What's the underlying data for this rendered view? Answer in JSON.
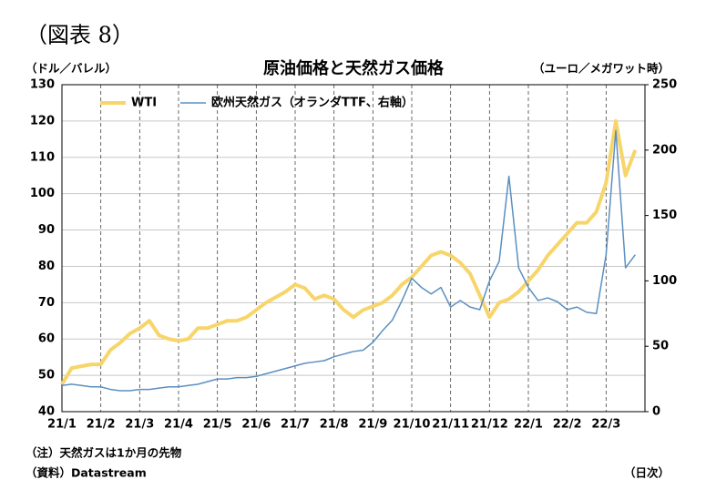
{
  "header": "（図表 8）",
  "chart_data": {
    "type": "line",
    "title": "原油価格と天然ガス価格",
    "y_label": "（ドル／バレル）",
    "y2_label": "（ユーロ／メガワット時）",
    "categories": [
      "21/1",
      null,
      null,
      null,
      "21/2",
      null,
      null,
      null,
      "21/3",
      null,
      null,
      null,
      "21/4",
      null,
      null,
      null,
      "21/5",
      null,
      null,
      null,
      "21/6",
      null,
      null,
      null,
      "21/7",
      null,
      null,
      null,
      "21/8",
      null,
      null,
      null,
      "21/9",
      null,
      null,
      null,
      "21/10",
      null,
      null,
      null,
      "21/11",
      null,
      null,
      null,
      "21/12",
      null,
      null,
      null,
      "22/1",
      null,
      null,
      null,
      "22/2",
      null,
      null,
      null,
      "22/3",
      null,
      null,
      null
    ],
    "series": [
      {
        "name": "WTI",
        "color": "#f7d56a",
        "axis": "y",
        "values": [
          47.5,
          52,
          52.5,
          53,
          53,
          57,
          59,
          61.5,
          63,
          65,
          61,
          60,
          59.5,
          60,
          63,
          63,
          64,
          65,
          65,
          66,
          68,
          70,
          71.5,
          73,
          75,
          74,
          71,
          72,
          71,
          68,
          66,
          68,
          69,
          70,
          72,
          75,
          77,
          80,
          83,
          84,
          83,
          81,
          78,
          72,
          66,
          70,
          71,
          73,
          76,
          79,
          83,
          86,
          89,
          92,
          92,
          95,
          103,
          120,
          105,
          112
        ]
      },
      {
        "name": "欧州天然ガス（オランダTTF、右軸）",
        "color": "#5b8fc0",
        "axis": "y2",
        "values": [
          20,
          21,
          20,
          19,
          19,
          17,
          16,
          16,
          17,
          17,
          18,
          19,
          19,
          20,
          21,
          23,
          25,
          25,
          26,
          26,
          27,
          29,
          31,
          33,
          35,
          37,
          38,
          39,
          42,
          44,
          46,
          47,
          53,
          62,
          70,
          85,
          102,
          95,
          90,
          95,
          80,
          85,
          80,
          78,
          100,
          115,
          180,
          110,
          95,
          85,
          87,
          84,
          78,
          80,
          76,
          75,
          120,
          215,
          110,
          120
        ]
      }
    ],
    "ylim": [
      40,
      130
    ],
    "yticks": [
      40,
      50,
      60,
      70,
      80,
      90,
      100,
      110,
      120,
      130
    ],
    "y2lim": [
      0,
      250
    ],
    "y2ticks": [
      0,
      50,
      100,
      150,
      200,
      250
    ],
    "grid": true,
    "legend": "top-left"
  },
  "notes": [
    "（注）天然ガスは1か月の先物",
    "（資料）Datastream"
  ],
  "frequency": "（日次）"
}
